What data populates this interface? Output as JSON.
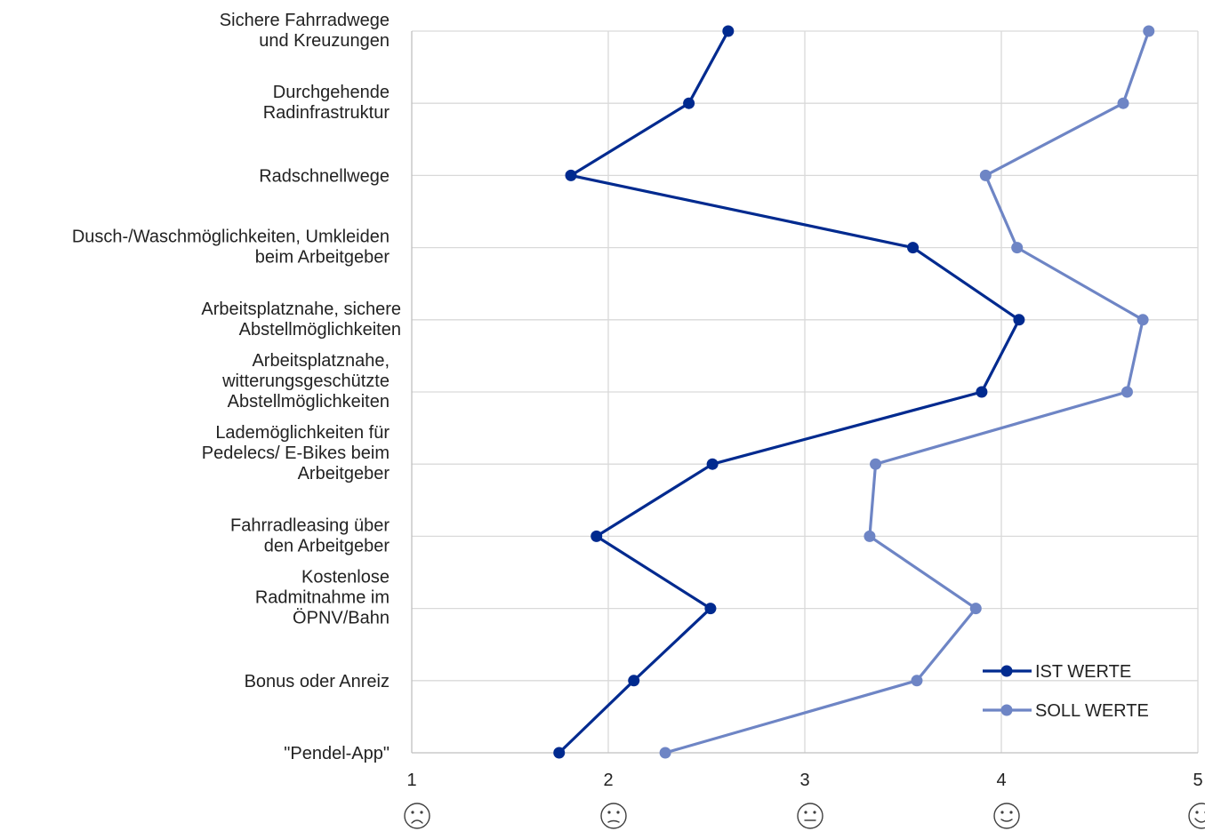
{
  "chart_data": {
    "type": "line",
    "orientation": "horizontal",
    "categories": [
      [
        "Sichere Fahrradwege",
        "und Kreuzungen"
      ],
      [
        "Durchgehende",
        "Radinfrastruktur"
      ],
      [
        "Radschnellwege"
      ],
      [
        "Dusch-/Waschmöglichkeiten, Umkleiden",
        "beim Arbeitgeber"
      ],
      [
        "Arbeitsplatznahe, sichere",
        "Abstellmöglichkeiten"
      ],
      [
        "Arbeitsplatznahe,",
        "witterungsgeschützte",
        "Abstellmöglichkeiten"
      ],
      [
        "Lademöglichkeiten für",
        "Pedelecs/ E-Bikes beim",
        "Arbeitgeber"
      ],
      [
        "Fahrradleasing über",
        "den Arbeitgeber"
      ],
      [
        "Kostenlose",
        "Radmitnahme im",
        "ÖPNV/Bahn"
      ],
      [
        "Bonus oder Anreiz"
      ],
      [
        "\"Pendel-App\""
      ]
    ],
    "series": [
      {
        "name": "IST WERTE",
        "color": "#002A8F",
        "values": [
          2.61,
          2.41,
          1.81,
          3.55,
          4.09,
          3.9,
          2.53,
          1.94,
          2.52,
          2.13,
          1.75
        ]
      },
      {
        "name": "SOLL WERTE",
        "color": "#6E85C5",
        "values": [
          4.75,
          4.62,
          3.92,
          4.08,
          4.72,
          4.64,
          3.36,
          3.33,
          3.87,
          3.57,
          2.29
        ]
      }
    ],
    "xlim": [
      1,
      5
    ],
    "xticks": [
      "1",
      "2",
      "3",
      "4",
      "5"
    ],
    "tick_icons": [
      "sad-face-icon",
      "slightly-sad-face-icon",
      "neutral-face-icon",
      "slightly-happy-face-icon",
      "happy-face-icon"
    ],
    "grid": true,
    "legend_position": "bottom-right",
    "gridColor": "#D9D9D9"
  }
}
